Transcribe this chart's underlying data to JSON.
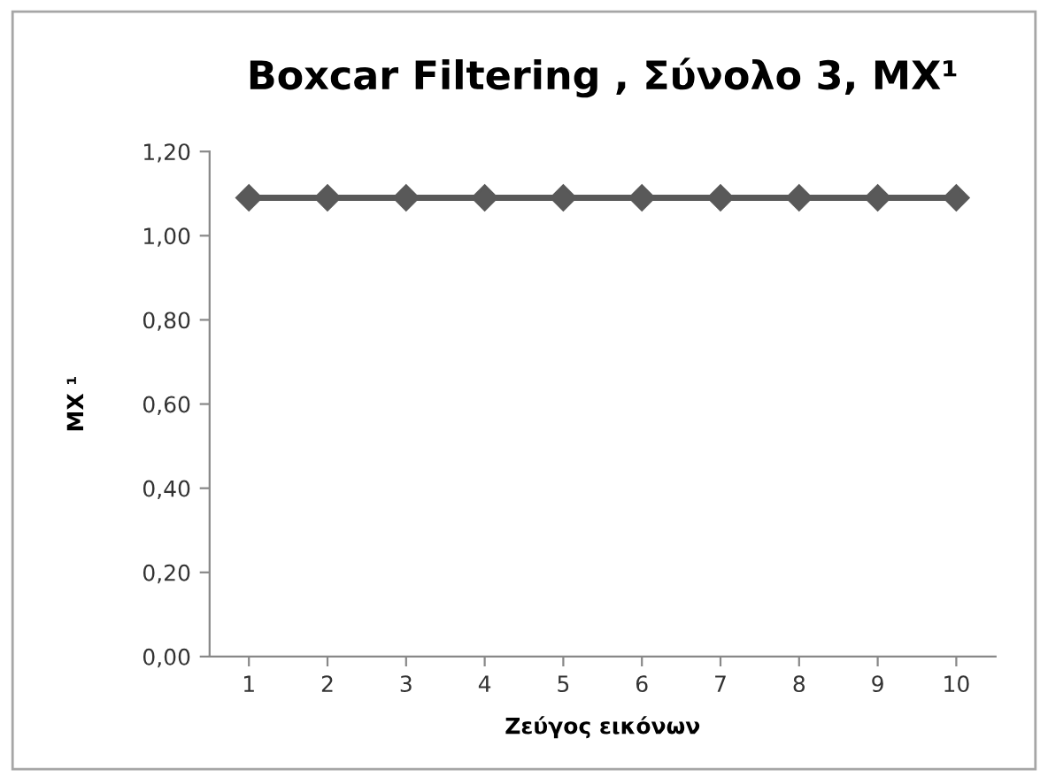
{
  "chart_data": {
    "type": "line",
    "title": "Boxcar Filtering , Σύνολο 3, MX¹",
    "xlabel": "Ζεύγος εικόνων",
    "ylabel": "MX ¹",
    "categories": [
      "1",
      "2",
      "3",
      "4",
      "5",
      "6",
      "7",
      "8",
      "9",
      "10"
    ],
    "series": [
      {
        "color": "#595959",
        "values": [
          1.09,
          1.09,
          1.09,
          1.09,
          1.09,
          1.09,
          1.09,
          1.09,
          1.09,
          1.09
        ]
      }
    ],
    "ylim": [
      0,
      1.2
    ],
    "yticks": [
      {
        "value": 0,
        "label": "0,00"
      },
      {
        "value": 0.2,
        "label": "0,20"
      },
      {
        "value": 0.4,
        "label": "0,40"
      },
      {
        "value": 0.6,
        "label": "0,60"
      },
      {
        "value": 0.8,
        "label": "0,80"
      },
      {
        "value": 1.0,
        "label": "1,00"
      },
      {
        "value": 1.2,
        "label": "1,20"
      }
    ],
    "marker": "diamond",
    "line_style": "solid",
    "grid": false
  }
}
